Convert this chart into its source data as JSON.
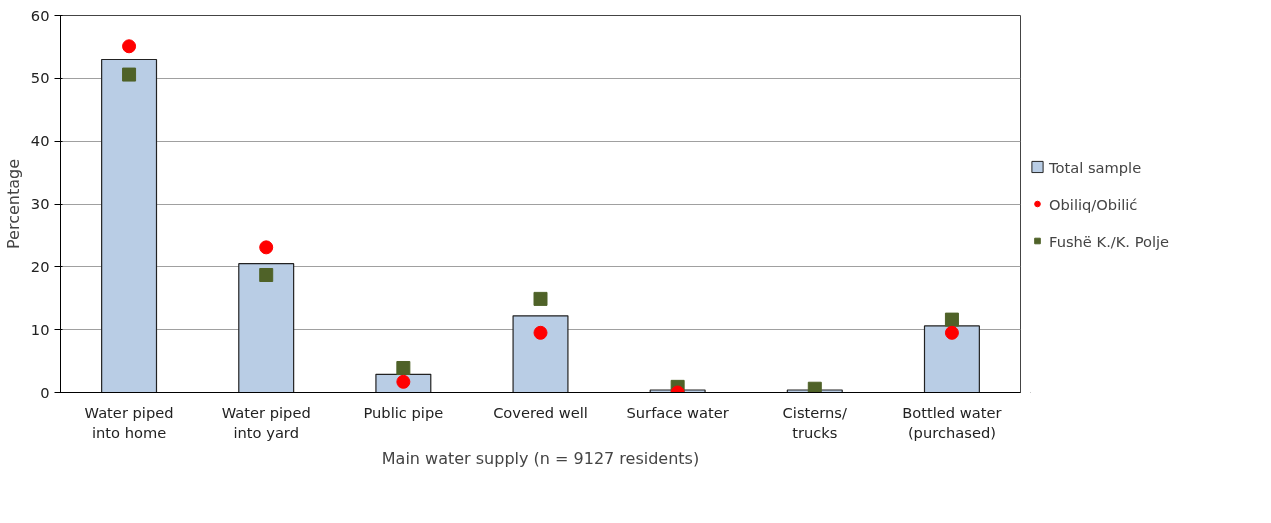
{
  "chart_data": {
    "type": "bar",
    "xlabel": "Main water supply (n = 9127 residents)",
    "ylabel": "Percentage",
    "categories": [
      "Water piped\ninto home",
      "Water piped\ninto yard",
      "Public pipe",
      "Covered well",
      "Surface water",
      "Cisterns/\ntrucks",
      "Bottled water\n(purchased)"
    ],
    "series": [
      {
        "name": "Total sample",
        "color": "#b9cde5",
        "values": [
          53.0,
          20.5,
          2.9,
          12.2,
          0.4,
          0.4,
          10.6
        ]
      },
      {
        "name": "Obiliq/Obilić",
        "type": "scatter",
        "marker": "circle",
        "color": "#ff0000",
        "values": [
          55.1,
          23.1,
          1.7,
          9.5,
          0.0,
          null,
          9.5
        ]
      },
      {
        "name": "Fushë K./K. Polje",
        "type": "scatter",
        "marker": "square",
        "color": "#4f6228",
        "values": [
          50.6,
          18.7,
          3.9,
          14.9,
          0.9,
          0.6,
          11.6
        ]
      }
    ],
    "ylim": [
      0,
      60
    ],
    "yticks": [
      0,
      10,
      20,
      30,
      40,
      50,
      60
    ],
    "grid": "y",
    "legend": "right"
  }
}
